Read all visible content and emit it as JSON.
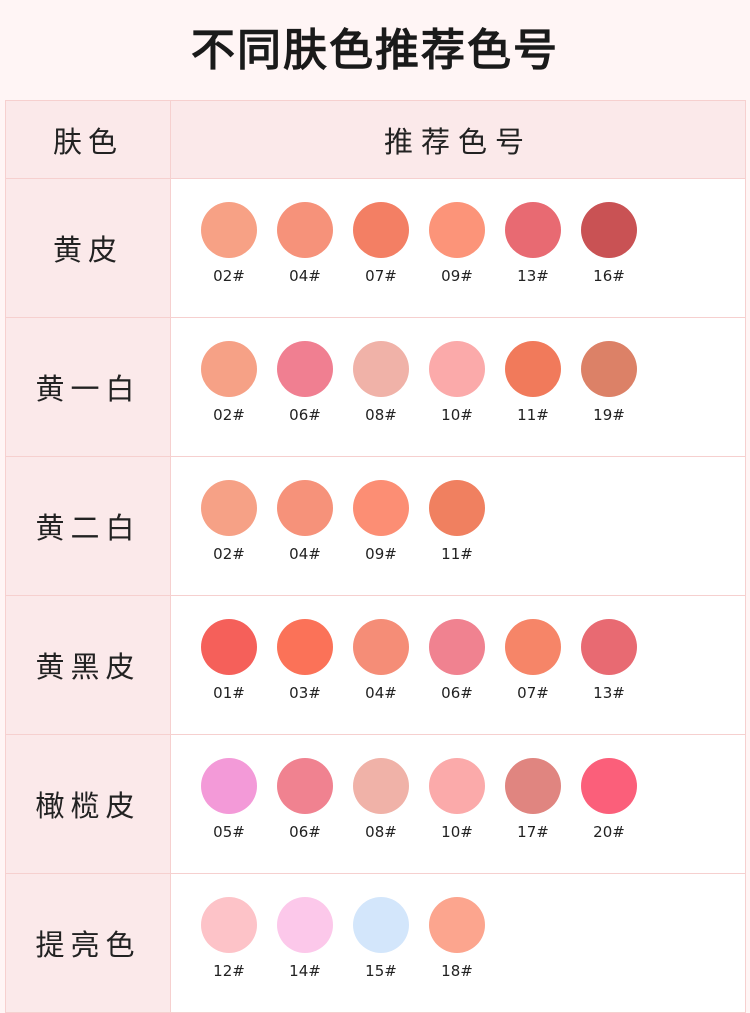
{
  "title": "不同肤色推荐色号",
  "header": {
    "skin": "肤色",
    "shades": "推荐色号"
  },
  "rows": [
    {
      "skin": "黄皮",
      "shades": [
        {
          "code": "02#",
          "color": "#f7a185"
        },
        {
          "code": "04#",
          "color": "#f6927a"
        },
        {
          "code": "07#",
          "color": "#f37f64"
        },
        {
          "code": "09#",
          "color": "#fc9479"
        },
        {
          "code": "13#",
          "color": "#e86a72"
        },
        {
          "code": "16#",
          "color": "#c95254"
        }
      ]
    },
    {
      "skin": "黄一白",
      "shades": [
        {
          "code": "02#",
          "color": "#f6a186"
        },
        {
          "code": "06#",
          "color": "#f07f91"
        },
        {
          "code": "08#",
          "color": "#f0b2a8"
        },
        {
          "code": "10#",
          "color": "#fbaaaa"
        },
        {
          "code": "11#",
          "color": "#f17a5b"
        },
        {
          "code": "19#",
          "color": "#dc8167"
        }
      ]
    },
    {
      "skin": "黄二白",
      "shades": [
        {
          "code": "02#",
          "color": "#f6a186"
        },
        {
          "code": "04#",
          "color": "#f6927a"
        },
        {
          "code": "09#",
          "color": "#fc8e74"
        },
        {
          "code": "11#",
          "color": "#f08060"
        }
      ]
    },
    {
      "skin": "黄黑皮",
      "shades": [
        {
          "code": "01#",
          "color": "#f5605a"
        },
        {
          "code": "03#",
          "color": "#fb7258"
        },
        {
          "code": "04#",
          "color": "#f58d77"
        },
        {
          "code": "06#",
          "color": "#f08290"
        },
        {
          "code": "07#",
          "color": "#f68568"
        },
        {
          "code": "13#",
          "color": "#e86a72"
        }
      ]
    },
    {
      "skin": "橄榄皮",
      "shades": [
        {
          "code": "05#",
          "color": "#f39ad8"
        },
        {
          "code": "06#",
          "color": "#f08290"
        },
        {
          "code": "08#",
          "color": "#f0b2a8"
        },
        {
          "code": "10#",
          "color": "#fbaaaa"
        },
        {
          "code": "17#",
          "color": "#e08580"
        },
        {
          "code": "20#",
          "color": "#fb5f7a"
        }
      ]
    },
    {
      "skin": "提亮色",
      "shades": [
        {
          "code": "12#",
          "color": "#fdc3c8"
        },
        {
          "code": "14#",
          "color": "#fcc8ea"
        },
        {
          "code": "15#",
          "color": "#d3e6fb"
        },
        {
          "code": "18#",
          "color": "#fca58e"
        }
      ]
    }
  ]
}
